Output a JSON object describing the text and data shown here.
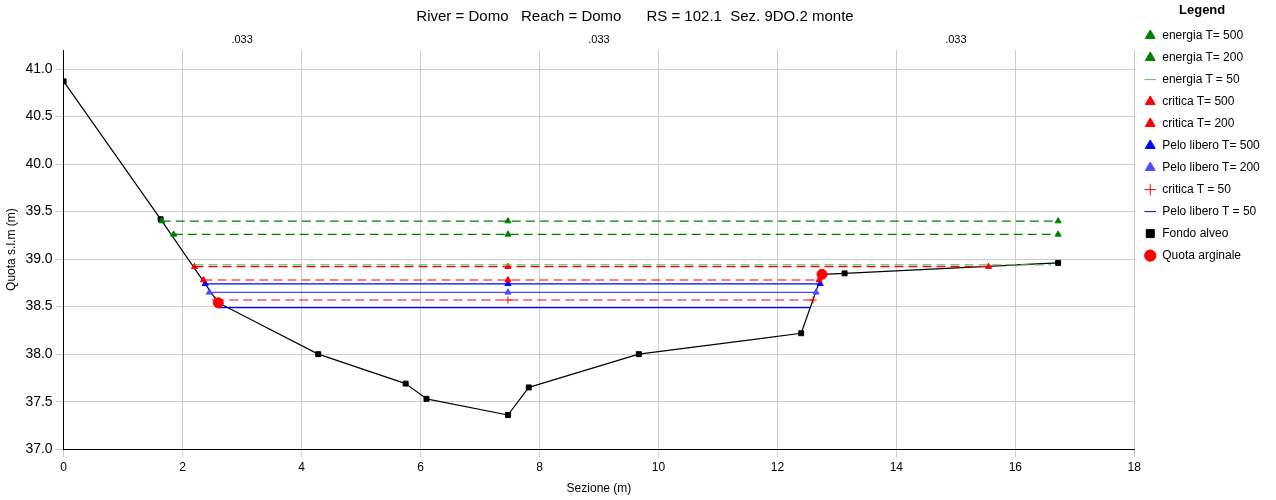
{
  "chart_data": {
    "type": "line",
    "title": "River = Domo   Reach = Domo      RS = 102.1  Sez. 9DO.2 monte",
    "xlabel": "Sezione (m)",
    "ylabel": "Quota s.l.m (m)",
    "legend_title": "Legend",
    "legend": "right",
    "grid": true,
    "xlim": [
      0,
      18
    ],
    "xticks": [
      0,
      2,
      4,
      6,
      8,
      10,
      12,
      14,
      16,
      18
    ],
    "ylim": [
      37,
      41.2
    ],
    "yticks": [
      {
        "value": 37,
        "label": "37.0"
      },
      {
        "value": 37.5,
        "label": "37.5"
      },
      {
        "value": 38,
        "label": "38.0"
      },
      {
        "value": 38.5,
        "label": "38.5"
      },
      {
        "value": 39,
        "label": "39.0"
      },
      {
        "value": 39.5,
        "label": "39.5"
      },
      {
        "value": 40,
        "label": "40.0"
      },
      {
        "value": 40.5,
        "label": "40.5"
      },
      {
        "value": 41,
        "label": "41.0"
      }
    ],
    "annotations": [
      ".033",
      ".033",
      ".033"
    ],
    "series": [
      {
        "name": "energia T= 500",
        "color": "#008000",
        "line_style": "dashed",
        "marker": "triangle",
        "x": [
          1.65,
          7.47,
          16.72
        ],
        "values": [
          39.4,
          39.4,
          39.4
        ]
      },
      {
        "name": "energia T= 200",
        "color": "#008000",
        "line_style": "dashed",
        "marker": "triangle",
        "x": [
          1.85,
          7.47,
          16.72
        ],
        "values": [
          39.26,
          39.26,
          39.26
        ]
      },
      {
        "name": "energia T = 50",
        "color": "#66b366",
        "line_style": "dashed",
        "marker": "none",
        "x": [
          2.2,
          16.6
        ],
        "values": [
          38.94,
          38.94
        ]
      },
      {
        "name": "critica T= 500",
        "color": "#ff0000",
        "line_style": "dashed",
        "marker": "triangle",
        "x": [
          2.2,
          7.47,
          15.55
        ],
        "values": [
          38.92,
          38.92,
          38.92
        ]
      },
      {
        "name": "critica T= 200",
        "color": "#ff0000",
        "line_style": "dashed",
        "marker": "triangle",
        "x": [
          2.35,
          7.47,
          12.7
        ],
        "values": [
          38.78,
          38.78,
          38.78
        ]
      },
      {
        "name": "Pelo libero T= 500",
        "color": "#0000ff",
        "line_style": "solid",
        "marker": "triangle",
        "x": [
          2.38,
          7.47,
          12.72
        ],
        "values": [
          38.74,
          38.74,
          38.74
        ]
      },
      {
        "name": "Pelo libero T= 200",
        "color": "#4d4dff",
        "line_style": "solid",
        "marker": "triangle",
        "x": [
          2.45,
          7.47,
          12.65
        ],
        "values": [
          38.65,
          38.65,
          38.65
        ]
      },
      {
        "name": "critica T = 50",
        "color": "#ff0000",
        "line_style": "dashed",
        "marker": "cross",
        "x": [
          2.55,
          7.47,
          12.6
        ],
        "values": [
          38.57,
          38.57,
          38.57
        ]
      },
      {
        "name": "Pelo libero T = 50",
        "color": "#0000ff",
        "line_style": "solid",
        "marker": "none",
        "x": [
          2.6,
          12.55
        ],
        "values": [
          38.49,
          38.49
        ]
      },
      {
        "name": "Fondo alveo",
        "color": "#000000",
        "line_style": "solid",
        "marker": "square",
        "x": [
          0,
          1.63,
          2.6,
          4.28,
          5.75,
          6.1,
          7.47,
          7.82,
          9.67,
          12.4,
          12.75,
          13.13,
          16.72
        ],
        "values": [
          40.87,
          39.42,
          38.54,
          38.0,
          37.69,
          37.53,
          37.36,
          37.65,
          38.0,
          38.22,
          38.84,
          38.85,
          38.96
        ]
      },
      {
        "name": "Quota arginale",
        "type": "scatter",
        "color": "#ff0000",
        "marker": "circle",
        "x": [
          2.6,
          12.75
        ],
        "values": [
          38.54,
          38.84
        ]
      }
    ]
  }
}
